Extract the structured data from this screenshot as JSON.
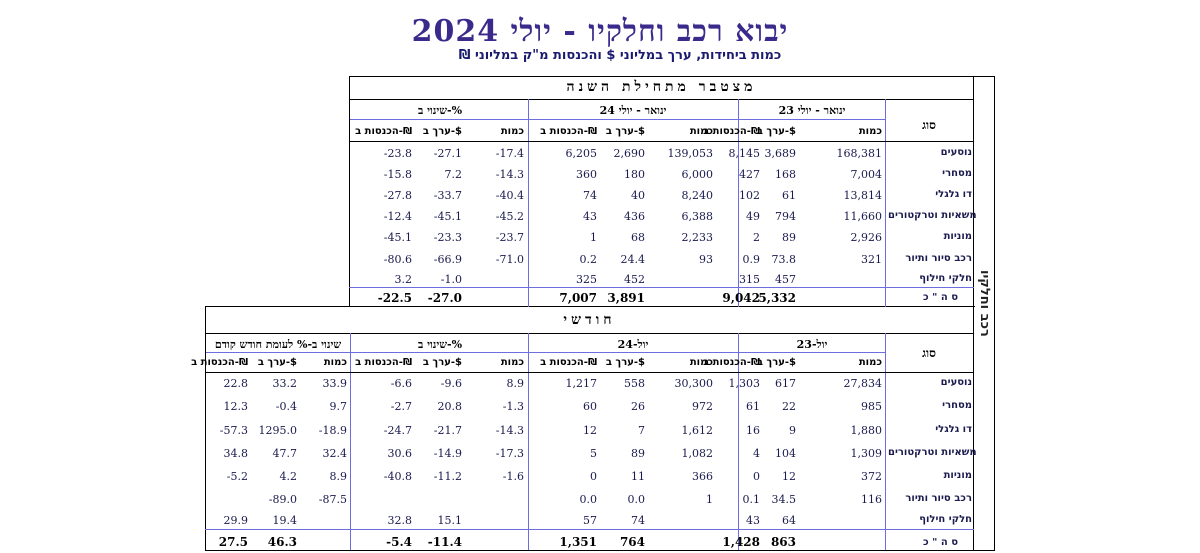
{
  "title": "יבוא רכב וחלקיו - יולי 2024",
  "subtitle": "כמות ביחידות, ערך במליוני $ והכנסות מ\"ק במליוני ₪",
  "side_label": "רכב וחלקיו",
  "ytd": {
    "banner": "מצטבר מתחילת השנה",
    "type_header": "סוג",
    "groups": [
      "ינואר - יולי 23",
      "ינואר - יולי 24",
      "שינוי ב-%"
    ],
    "cols": [
      "כמות",
      "ערך ב-$",
      "הכנסות ב-₪",
      "כמות",
      "ערך ב-$",
      "הכנסות ב-₪",
      "כמות",
      "ערך ב-$",
      "הכנסות ב-₪"
    ],
    "rows": [
      {
        "cat": "נוסעים",
        "v": [
          "168,381",
          "3,689",
          "8,145",
          "139,053",
          "2,690",
          "6,205",
          "-17.4",
          "-27.1",
          "-23.8"
        ]
      },
      {
        "cat": "מסחרי",
        "v": [
          "7,004",
          "168",
          "427",
          "6,000",
          "180",
          "360",
          "-14.3",
          "7.2",
          "-15.8"
        ]
      },
      {
        "cat": "דו גלגלי",
        "v": [
          "13,814",
          "61",
          "102",
          "8,240",
          "40",
          "74",
          "-40.4",
          "-33.7",
          "-27.8"
        ]
      },
      {
        "cat": "משאיות וטרקטורים",
        "v": [
          "11,660",
          "794",
          "49",
          "6,388",
          "436",
          "43",
          "-45.2",
          "-45.1",
          "-12.4"
        ]
      },
      {
        "cat": "מוניות",
        "v": [
          "2,926",
          "89",
          "2",
          "2,233",
          "68",
          "1",
          "-23.7",
          "-23.3",
          "-45.1"
        ]
      },
      {
        "cat": "רכב סיור ותיור",
        "v": [
          "321",
          "73.8",
          "0.9",
          "93",
          "24.4",
          "0.2",
          "-71.0",
          "-66.9",
          "-80.6"
        ]
      },
      {
        "cat": "חלקי חילוף",
        "v": [
          "",
          "457",
          "315",
          "",
          "452",
          "325",
          "",
          "-1.0",
          "3.2"
        ]
      }
    ],
    "total": {
      "cat": "ס ה \" כ",
      "v": [
        "",
        "5,332",
        "9,042",
        "",
        "3,891",
        "7,007",
        "",
        "-27.0",
        "-22.5"
      ]
    }
  },
  "monthly": {
    "banner": "חודשי",
    "type_header": "סוג",
    "groups": [
      "יול-23",
      "יול-24",
      "שינוי ב-%",
      "שינוי ב-% לעומת חודש קודם"
    ],
    "cols": [
      "כמות",
      "ערך ב-$",
      "הכנסות ב-₪",
      "כמות",
      "ערך ב-$",
      "הכנסות ב-₪",
      "כמות",
      "ערך ב-$",
      "הכנסות ב-₪",
      "כמות",
      "ערך ב-$",
      "הכנסות ב-₪"
    ],
    "rows": [
      {
        "cat": "נוסעים",
        "v": [
          "27,834",
          "617",
          "1,303",
          "30,300",
          "558",
          "1,217",
          "8.9",
          "-9.6",
          "-6.6",
          "33.9",
          "33.2",
          "22.8"
        ]
      },
      {
        "cat": "מסחרי",
        "v": [
          "985",
          "22",
          "61",
          "972",
          "26",
          "60",
          "-1.3",
          "20.8",
          "-2.7",
          "9.7",
          "-0.4",
          "12.3"
        ]
      },
      {
        "cat": "דו גלגלי",
        "v": [
          "1,880",
          "9",
          "16",
          "1,612",
          "7",
          "12",
          "-14.3",
          "-21.7",
          "-24.7",
          "-18.9",
          "1295.0",
          "-57.3"
        ]
      },
      {
        "cat": "משאיות וטרקטורים",
        "v": [
          "1,309",
          "104",
          "4",
          "1,082",
          "89",
          "5",
          "-17.3",
          "-14.9",
          "30.6",
          "32.4",
          "47.7",
          "34.8"
        ]
      },
      {
        "cat": "מוניות",
        "v": [
          "372",
          "12",
          "0",
          "366",
          "11",
          "0",
          "-1.6",
          "-11.2",
          "-40.8",
          "8.9",
          "4.2",
          "-5.2"
        ]
      },
      {
        "cat": "רכב סיור ותיור",
        "v": [
          "116",
          "34.5",
          "0.1",
          "1",
          "0.0",
          "0.0",
          "",
          "",
          "",
          "-87.5",
          "-89.0",
          ""
        ]
      },
      {
        "cat": "חלקי חילוף",
        "v": [
          "",
          "64",
          "43",
          "",
          "74",
          "57",
          "",
          "15.1",
          "32.8",
          "",
          "19.4",
          "29.9"
        ]
      }
    ],
    "total": {
      "cat": "ס ה \" כ",
      "v": [
        "",
        "863",
        "1,428",
        "",
        "764",
        "1,351",
        "",
        "-11.4",
        "-5.4",
        "",
        "46.3",
        "27.5"
      ]
    }
  }
}
